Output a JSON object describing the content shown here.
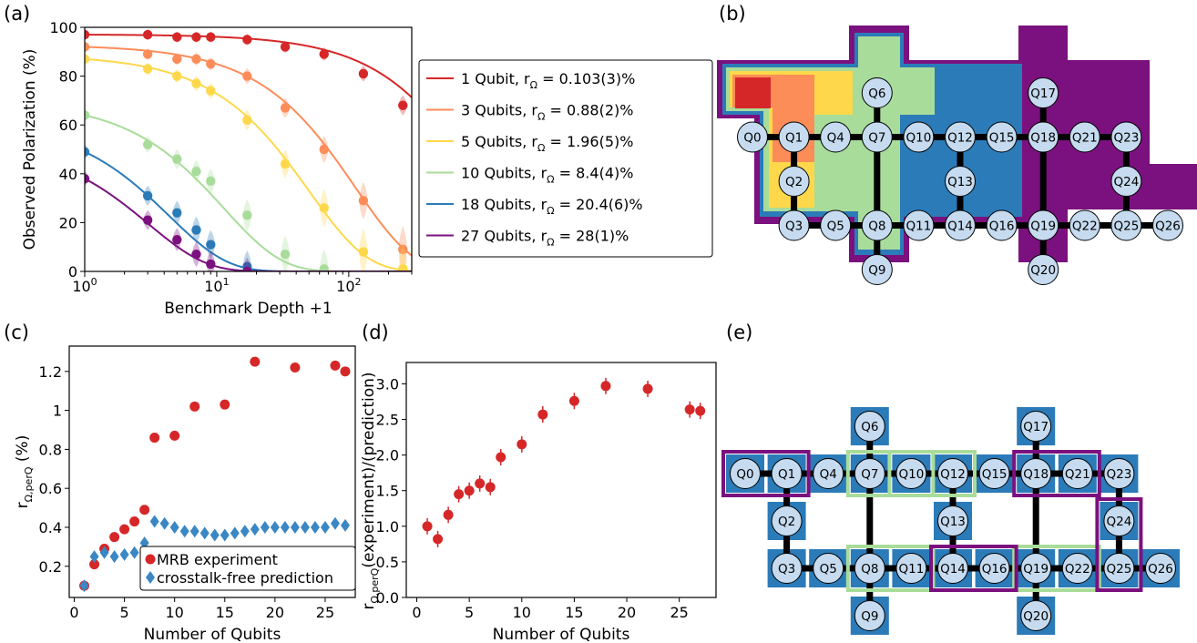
{
  "panels": {
    "a": "(a)",
    "b": "(b)",
    "c": "(c)",
    "d": "(d)",
    "e": "(e)"
  },
  "colors": {
    "q1": "#d62728",
    "q3": "#fc8d59",
    "q5": "#fed84a",
    "q10": "#a8dc9a",
    "q18": "#2b7bb9",
    "q27": "#7b117e",
    "red": "#d62728",
    "blue": "#3a87c4",
    "node": "#c6dbef",
    "edge": "#000000"
  },
  "chart_data": [
    {
      "id": "a",
      "type": "line",
      "xlabel": "Benchmark Depth +1",
      "ylabel": "Observed Polarization (%)",
      "xscale": "log",
      "xlim": [
        1,
        300
      ],
      "ylim": [
        0,
        100
      ],
      "xticks": [
        {
          "v": 1,
          "b": "10",
          "e": "0"
        },
        {
          "v": 10,
          "b": "10",
          "e": "1"
        },
        {
          "v": 100,
          "b": "10",
          "e": "2"
        }
      ],
      "yticks": [
        0,
        20,
        40,
        60,
        80,
        100
      ],
      "series": [
        {
          "name": "1 Qubit,  r",
          "sub": "Ω",
          "val": " = 0.103(3)%",
          "color": "q1",
          "A": 97,
          "r": 0.00103,
          "pts": [
            [
              1,
              97
            ],
            [
              3,
              97
            ],
            [
              5,
              96
            ],
            [
              7,
              96
            ],
            [
              9,
              96
            ],
            [
              17,
              95
            ],
            [
              33,
              92
            ],
            [
              65,
              89
            ],
            [
              129,
              81
            ],
            [
              257,
              68
            ]
          ]
        },
        {
          "name": "3 Qubits, r",
          "sub": "Ω",
          "val": " = 0.88(2)%",
          "color": "q3",
          "A": 92,
          "r": 0.0088,
          "pts": [
            [
              1,
              92
            ],
            [
              3,
              89
            ],
            [
              5,
              87
            ],
            [
              7,
              87
            ],
            [
              9,
              85
            ],
            [
              17,
              80
            ],
            [
              33,
              67
            ],
            [
              65,
              50
            ],
            [
              129,
              29
            ],
            [
              257,
              9
            ]
          ]
        },
        {
          "name": "5 Qubits, r",
          "sub": "Ω",
          "val": " = 1.96(5)%",
          "color": "q5",
          "A": 87,
          "r": 0.0196,
          "pts": [
            [
              1,
              87
            ],
            [
              3,
              83
            ],
            [
              5,
              80
            ],
            [
              7,
              77
            ],
            [
              9,
              74
            ],
            [
              17,
              62
            ],
            [
              33,
              44
            ],
            [
              65,
              26
            ],
            [
              129,
              8
            ],
            [
              257,
              1
            ]
          ]
        },
        {
          "name": "10 Qubits, r",
          "sub": "Ω",
          "val": " = 8.4(4)%",
          "color": "q10",
          "A": 64,
          "r": 0.084,
          "pts": [
            [
              1,
              64
            ],
            [
              3,
              52
            ],
            [
              5,
              46
            ],
            [
              7,
              41
            ],
            [
              9,
              37
            ],
            [
              17,
              23
            ],
            [
              33,
              7
            ],
            [
              65,
              1
            ]
          ]
        },
        {
          "name": "18 Qubits, r",
          "sub": "Ω",
          "val": " = 20.4(6)%",
          "color": "q18",
          "A": 49,
          "r": 0.204,
          "pts": [
            [
              1,
              49
            ],
            [
              3,
              31
            ],
            [
              5,
              24
            ],
            [
              7,
              17
            ],
            [
              9,
              11
            ],
            [
              17,
              2
            ]
          ]
        },
        {
          "name": "27 Qubits, r",
          "sub": "Ω",
          "val": " = 28(1)%",
          "color": "q27",
          "A": 38,
          "r": 0.28,
          "pts": [
            [
              1,
              38
            ],
            [
              3,
              21
            ],
            [
              5,
              13
            ],
            [
              7,
              7
            ],
            [
              9,
              3
            ],
            [
              17,
              0
            ]
          ]
        }
      ]
    },
    {
      "id": "c",
      "type": "scatter",
      "xlabel": "Number of Qubits",
      "ylabel_main": "r",
      "ylabel_sub": "Ω,perQ",
      "ylabel_tail": " (%)",
      "xlim": [
        -0.5,
        28
      ],
      "ylim": [
        0.04,
        1.33
      ],
      "xticks": [
        0,
        5,
        10,
        15,
        20,
        25
      ],
      "yticks": [
        0.2,
        0.4,
        0.6,
        0.8,
        1.0,
        1.2
      ],
      "series": [
        {
          "name": "MRB experiment",
          "marker": "circle",
          "color": "red",
          "x": [
            1,
            2,
            3,
            4,
            5,
            6,
            7,
            8,
            10,
            12,
            15,
            18,
            22,
            26,
            27
          ],
          "y": [
            0.1,
            0.21,
            0.29,
            0.35,
            0.39,
            0.43,
            0.49,
            0.86,
            0.87,
            1.02,
            1.03,
            1.25,
            1.22,
            1.23,
            1.2
          ]
        },
        {
          "name": "crosstalk-free prediction",
          "marker": "diamond",
          "color": "blue",
          "x": [
            1,
            2,
            3,
            4,
            5,
            6,
            7,
            8,
            9,
            10,
            11,
            12,
            13,
            14,
            15,
            16,
            17,
            18,
            19,
            20,
            21,
            22,
            23,
            24,
            25,
            26,
            27
          ],
          "y": [
            0.1,
            0.25,
            0.27,
            0.25,
            0.26,
            0.27,
            0.32,
            0.43,
            0.42,
            0.4,
            0.38,
            0.38,
            0.37,
            0.36,
            0.36,
            0.37,
            0.38,
            0.39,
            0.4,
            0.4,
            0.4,
            0.4,
            0.4,
            0.4,
            0.4,
            0.42,
            0.41
          ]
        }
      ]
    },
    {
      "id": "d",
      "type": "scatter",
      "xlabel": "Number of Qubits",
      "ylabel_main": "r",
      "ylabel_sub": "Ω,perQ",
      "ylabel_tail": "(experiment)/(prediction)",
      "xlim": [
        -1,
        28.5
      ],
      "ylim": [
        0,
        3.3
      ],
      "xticks": [
        0,
        5,
        10,
        15,
        20,
        25
      ],
      "yticks": [
        "0.0",
        "0.5",
        "1.0",
        "1.5",
        "2.0",
        "2.5",
        "3.0"
      ],
      "series": [
        {
          "marker": "circle",
          "color": "red",
          "x": [
            1,
            2,
            3,
            4,
            5,
            6,
            7,
            8,
            10,
            12,
            15,
            18,
            22,
            26,
            27
          ],
          "y": [
            1.0,
            0.82,
            1.16,
            1.45,
            1.5,
            1.6,
            1.55,
            1.97,
            2.15,
            2.57,
            2.76,
            2.97,
            2.93,
            2.64,
            2.62
          ]
        }
      ]
    }
  ],
  "qubits": [
    "Q0",
    "Q1",
    "Q2",
    "Q3",
    "Q4",
    "Q5",
    "Q6",
    "Q7",
    "Q8",
    "Q9",
    "Q10",
    "Q11",
    "Q12",
    "Q13",
    "Q14",
    "Q15",
    "Q16",
    "Q17",
    "Q18",
    "Q19",
    "Q20",
    "Q21",
    "Q22",
    "Q23",
    "Q24",
    "Q25",
    "Q26"
  ]
}
